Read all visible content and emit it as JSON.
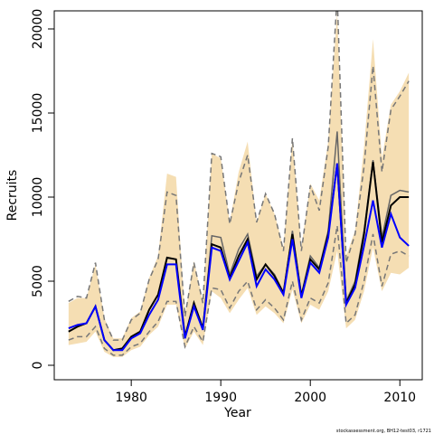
{
  "chart_data": {
    "type": "line",
    "xlabel": "Year",
    "ylabel": "Recruits",
    "footnote": "stockassessment.org, BH12-test03, r1721",
    "x": [
      1973,
      1974,
      1975,
      1976,
      1977,
      1978,
      1979,
      1980,
      1981,
      1982,
      1983,
      1984,
      1985,
      1986,
      1987,
      1988,
      1989,
      1990,
      1991,
      1992,
      1993,
      1994,
      1995,
      1996,
      1997,
      1998,
      1999,
      2000,
      2001,
      2002,
      2003,
      2004,
      2005,
      2006,
      2007,
      2008,
      2009,
      2010,
      2011
    ],
    "band": {
      "color": "#f5deb3",
      "lower": [
        1200,
        1300,
        1400,
        2000,
        800,
        500,
        500,
        900,
        1100,
        1800,
        2300,
        3600,
        3600,
        1000,
        2000,
        1200,
        4400,
        4000,
        3100,
        3900,
        4600,
        3000,
        3500,
        3100,
        2500,
        4500,
        2500,
        3600,
        3300,
        4400,
        6800,
        2200,
        2700,
        4400,
        7000,
        4400,
        5500,
        5400,
        5800
      ],
      "upper": [
        3700,
        4000,
        4000,
        6000,
        2800,
        1600,
        1600,
        2800,
        3200,
        5200,
        6500,
        11400,
        11200,
        3000,
        6200,
        3800,
        12600,
        12300,
        8500,
        11500,
        13300,
        8500,
        10200,
        9000,
        7000,
        13500,
        7000,
        10800,
        9800,
        13300,
        21000,
        6500,
        8000,
        13000,
        19400,
        12300,
        15500,
        16300,
        17400
      ]
    },
    "series": [
      {
        "color": "#777777",
        "dash": true,
        "width": 1.5,
        "values": [
          3800,
          4100,
          4000,
          6100,
          2700,
          1500,
          1500,
          2700,
          3100,
          5100,
          6300,
          10300,
          10100,
          2900,
          6100,
          3700,
          12600,
          12400,
          8400,
          10900,
          12500,
          8500,
          10200,
          9000,
          6800,
          13500,
          6800,
          10700,
          9200,
          13000,
          22000,
          6100,
          7800,
          11800,
          17800,
          11500,
          15200,
          16000,
          16900
        ]
      },
      {
        "color": "#777777",
        "dash": true,
        "width": 1.5,
        "values": [
          1500,
          1700,
          1700,
          2300,
          1000,
          600,
          600,
          1100,
          1300,
          2000,
          2600,
          3800,
          3800,
          1100,
          2300,
          1400,
          4600,
          4500,
          3400,
          4400,
          5000,
          3300,
          3900,
          3400,
          2700,
          5000,
          2700,
          4000,
          3700,
          4900,
          8300,
          2500,
          3000,
          5000,
          7800,
          4700,
          6600,
          6800,
          6500
        ]
      },
      {
        "color": "#666666",
        "dash": false,
        "width": 1.5,
        "values": [
          2000,
          2300,
          2500,
          3500,
          1500,
          900,
          1000,
          1700,
          2000,
          3300,
          4200,
          6400,
          6300,
          1700,
          3700,
          2200,
          7700,
          7600,
          5400,
          6900,
          7800,
          5300,
          6000,
          5400,
          4300,
          8000,
          4200,
          6500,
          5800,
          8000,
          13900,
          3800,
          5000,
          8000,
          12200,
          7600,
          10100,
          10400,
          10300
        ]
      },
      {
        "color": "#000000",
        "dash": false,
        "width": 2,
        "values": [
          2000,
          2300,
          2500,
          3500,
          1500,
          900,
          1000,
          1700,
          2000,
          3300,
          4200,
          6400,
          6300,
          1700,
          3700,
          2200,
          7200,
          7000,
          5200,
          6500,
          7500,
          5100,
          6000,
          5300,
          4300,
          7800,
          4100,
          6300,
          5700,
          7800,
          12000,
          3700,
          4800,
          7800,
          12100,
          7300,
          9500,
          10000,
          10000
        ]
      },
      {
        "color": "#0000ff",
        "dash": false,
        "width": 2,
        "values": [
          2200,
          2400,
          2500,
          3500,
          1500,
          900,
          900,
          1600,
          1900,
          3000,
          3900,
          6000,
          6000,
          1600,
          3500,
          2100,
          7000,
          6800,
          5100,
          6200,
          7300,
          4700,
          5700,
          5100,
          4200,
          7500,
          4000,
          6100,
          5500,
          7600,
          12000,
          3600,
          4600,
          7100,
          9800,
          7000,
          9000,
          7600,
          7100
        ]
      }
    ],
    "xlim": [
      1971.4,
      2012.5
    ],
    "ylim": [
      -860,
      21075
    ],
    "xticks": [
      1980,
      1990,
      2000,
      2010
    ],
    "yticks": [
      0,
      5000,
      10000,
      15000,
      20000
    ]
  }
}
